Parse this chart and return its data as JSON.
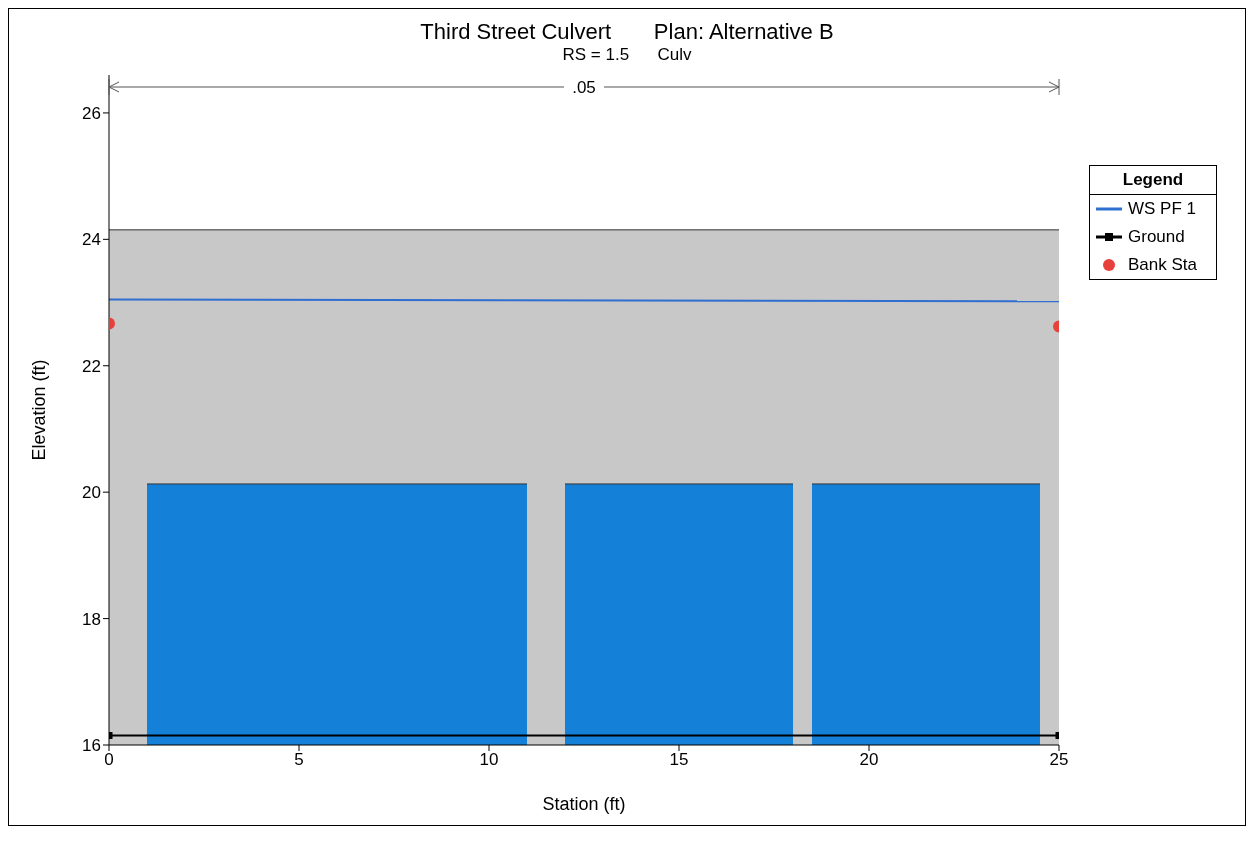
{
  "chart_data": {
    "type": "line",
    "title": "Third Street Culvert       Plan: Alternative B",
    "subtitle": "RS = 1.5      Culv",
    "xlabel": "Station (ft)",
    "ylabel": "Elevation (ft)",
    "legend_title": "Legend",
    "legend": "right",
    "xlim": [
      0,
      25
    ],
    "xticks": [
      0,
      5,
      10,
      15,
      20,
      25
    ],
    "ylim": [
      16,
      26.6
    ],
    "yticks": [
      16,
      18,
      20,
      22,
      24,
      26
    ],
    "grid": false,
    "annotations": [
      ".05"
    ],
    "series": [
      {
        "type": "area",
        "color": "#c8c8c8",
        "x": [
          0,
          25
        ],
        "values": [
          24.15,
          24.15
        ]
      },
      {
        "type": "area",
        "color": "#1580d8",
        "x": [
          1,
          11
        ],
        "values": [
          20.13,
          20.13
        ]
      },
      {
        "type": "area",
        "color": "#1580d8",
        "x": [
          12,
          18
        ],
        "values": [
          20.13,
          20.13
        ]
      },
      {
        "type": "area",
        "color": "#1580d8",
        "x": [
          18.5,
          24.5
        ],
        "values": [
          20.13,
          20.13
        ]
      },
      {
        "name": "WS PF 1",
        "color": "#2f6fd0",
        "x": [
          0,
          25
        ],
        "values": [
          23.05,
          23.02
        ],
        "marker": "none"
      },
      {
        "name": "Ground",
        "color": "#000000",
        "x": [
          0,
          25
        ],
        "values": [
          16.15,
          16.15
        ],
        "marker": "square"
      },
      {
        "type": "scatter",
        "name": "Bank Sta",
        "color": "#e8413c",
        "x": [
          0,
          25
        ],
        "values": [
          22.67,
          22.62
        ],
        "marker": "circle"
      }
    ]
  }
}
